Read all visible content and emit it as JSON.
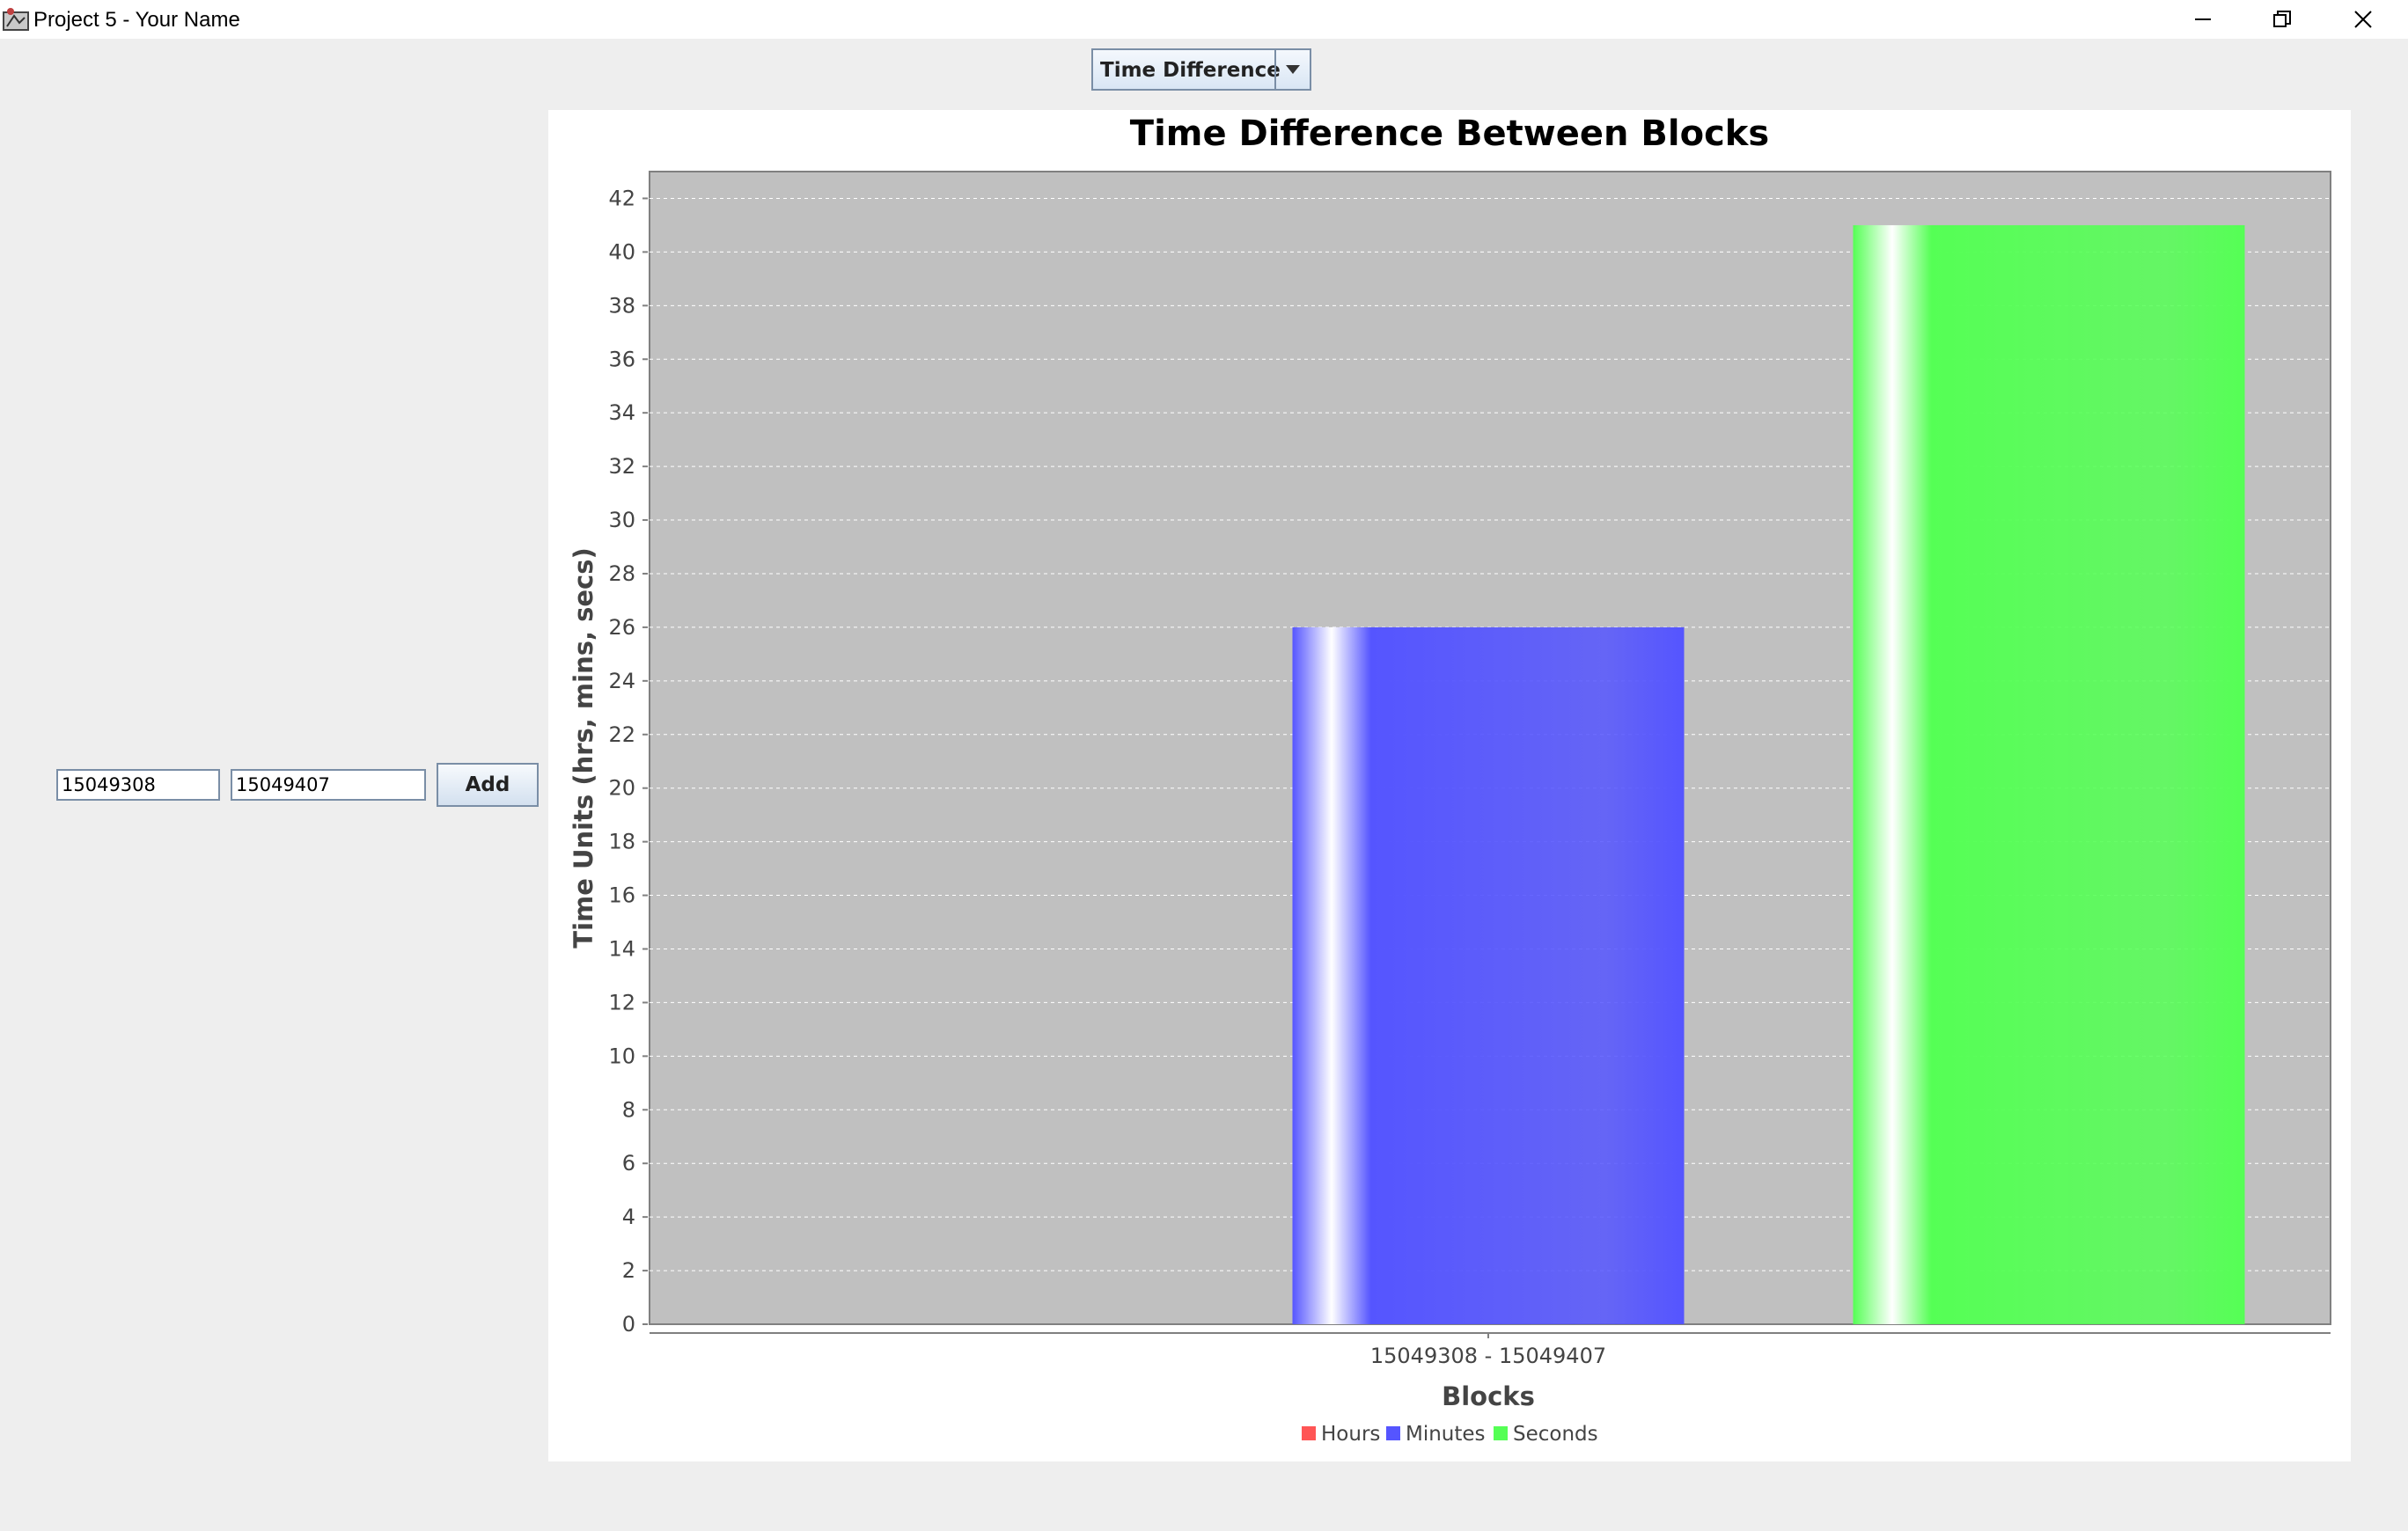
{
  "window": {
    "title": "Project 5 - Your Name"
  },
  "toolbar": {
    "view_select_value": "Time Difference"
  },
  "form": {
    "block_start_value": "15049308",
    "block_end_value": "15049407",
    "add_label": "Add"
  },
  "colors": {
    "hours": "#ff5555",
    "minutes": "#5555ff",
    "seconds": "#55ff55",
    "plot_background": "#c0c0c0",
    "gridline": "#ffffff"
  },
  "chart_data": {
    "type": "bar",
    "title": "Time Difference Between Blocks",
    "xlabel": "Blocks",
    "ylabel": "Time Units (hrs, mins, secs)",
    "categories": [
      "15049308 - 15049407"
    ],
    "series": [
      {
        "name": "Hours",
        "values": [
          0
        ]
      },
      {
        "name": "Minutes",
        "values": [
          26
        ]
      },
      {
        "name": "Seconds",
        "values": [
          41
        ]
      }
    ],
    "ylim": [
      0,
      43
    ],
    "yticks": [
      0,
      2,
      4,
      6,
      8,
      10,
      12,
      14,
      16,
      18,
      20,
      22,
      24,
      26,
      28,
      30,
      32,
      34,
      36,
      38,
      40,
      42
    ],
    "grid": true,
    "legend_position": "bottom-center"
  }
}
